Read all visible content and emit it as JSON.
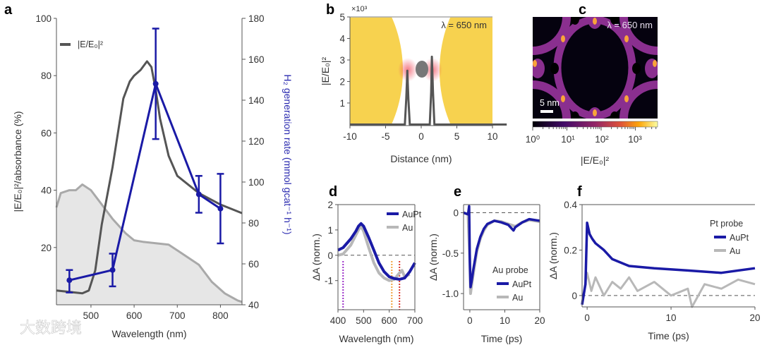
{
  "watermark": "大数跨境",
  "colors": {
    "blue": "#1a1aa6",
    "dark": "#555555",
    "gray": "#b8b8b8",
    "fill": "#e6e6e6",
    "gold": "#f7d046"
  },
  "chart_data": [
    {
      "panel": "a",
      "type": "line",
      "xlabel": "Wavelength (nm)",
      "ylabel": "|E/E₀|²/absorbance (%)",
      "y2label": "H₂ generation rate (mmol gcat⁻¹ h⁻¹)",
      "xlim": [
        420,
        850
      ],
      "ylim": [
        0,
        100
      ],
      "y2lim": [
        40,
        180
      ],
      "xticks": [
        "500",
        "600",
        "700",
        "800"
      ],
      "yticks": [
        "20",
        "40",
        "60",
        "80",
        "100"
      ],
      "y2ticks": [
        "40",
        "60",
        "80",
        "100",
        "120",
        "140",
        "160",
        "180"
      ],
      "legend": [
        "|E/E₀|²"
      ],
      "series": [
        {
          "name": "|E/E₀|²",
          "axis": "left",
          "x": [
            420,
            480,
            495,
            510,
            525,
            550,
            575,
            590,
            600,
            615,
            630,
            640,
            650,
            660,
            680,
            700,
            750,
            800,
            850
          ],
          "y": [
            5,
            4,
            5,
            12,
            28,
            48,
            72,
            78,
            80,
            82,
            85,
            83,
            75,
            65,
            52,
            45,
            39,
            35,
            32
          ]
        },
        {
          "name": "absorbance",
          "axis": "left",
          "x": [
            420,
            430,
            450,
            465,
            480,
            500,
            520,
            550,
            580,
            600,
            620,
            650,
            680,
            700,
            720,
            750,
            780,
            810,
            840,
            850
          ],
          "y": [
            34,
            39,
            40,
            40,
            42,
            40,
            36,
            30,
            25,
            22.5,
            22,
            21.5,
            21,
            19,
            17,
            14,
            8,
            4,
            1.5,
            1
          ]
        },
        {
          "name": "H₂ generation rate",
          "axis": "right",
          "x": [
            450,
            550,
            650,
            750,
            800
          ],
          "y": [
            52,
            57,
            148,
            94,
            87
          ],
          "err_low": [
            46,
            49,
            121,
            85,
            70
          ],
          "err_high": [
            57,
            65,
            175,
            103,
            104
          ]
        }
      ]
    },
    {
      "panel": "b",
      "type": "line",
      "xlabel": "Distance (nm)",
      "ylabel": "|E/E₀|²",
      "multiplier": "×10³",
      "annotation": "λ = 650 nm",
      "xlim": [
        -10,
        10
      ],
      "ylim": [
        -0.05,
        5
      ],
      "xticks": [
        "-10",
        "-5",
        "0",
        "5",
        "10"
      ],
      "yticks": [
        "1",
        "2",
        "3",
        "4",
        "5"
      ],
      "series": [
        {
          "name": "|E/E₀|²",
          "x": [
            -10,
            -2.3,
            -2.1,
            -1.95,
            -1.8,
            -1.6,
            1.2,
            1.4,
            1.5,
            1.65,
            1.85,
            12
          ],
          "y": [
            0,
            0,
            1.2,
            2.5,
            1.2,
            0,
            0,
            1.5,
            3.15,
            1.5,
            0,
            0
          ]
        }
      ]
    },
    {
      "panel": "c",
      "type": "heatmap",
      "annotation": "λ = 650 nm",
      "scalebar": "5 nm",
      "colorbar_label": "|E/E₀|²",
      "colorbar_ticks": [
        "10⁰",
        "10¹",
        "10²",
        "10³"
      ],
      "colorbar_range": [
        1,
        4000
      ]
    },
    {
      "panel": "d",
      "type": "line",
      "xlabel": "Wavelength (nm)",
      "ylabel": "ΔA (norm.)",
      "xlim": [
        400,
        700
      ],
      "ylim": [
        -2.15,
        2
      ],
      "xticks": [
        "400",
        "500",
        "600",
        "700"
      ],
      "yticks": [
        "-1",
        "0",
        "1",
        "2"
      ],
      "legend": [
        "AuPt",
        "Au"
      ],
      "vlines": [
        {
          "x": 420,
          "color": "#9b2fc9"
        },
        {
          "x": 610,
          "color": "#f2a23a"
        },
        {
          "x": 640,
          "color": "#d9342b"
        }
      ],
      "series": [
        {
          "name": "AuPt",
          "x": [
            400,
            420,
            450,
            470,
            480,
            490,
            500,
            520,
            540,
            560,
            580,
            600,
            620,
            640,
            660,
            680,
            700
          ],
          "y": [
            0.2,
            0.3,
            0.65,
            0.95,
            1.15,
            1.25,
            1.15,
            0.7,
            0.2,
            -0.3,
            -0.65,
            -0.85,
            -0.92,
            -0.95,
            -0.9,
            -0.65,
            -0.3
          ]
        },
        {
          "name": "Au",
          "x": [
            400,
            420,
            450,
            470,
            480,
            490,
            500,
            520,
            540,
            560,
            580,
            600,
            620,
            640,
            650,
            660,
            680
          ],
          "y": [
            0,
            0.05,
            0.4,
            0.8,
            1.0,
            1.15,
            0.95,
            0.3,
            -0.3,
            -0.7,
            -0.9,
            -1.0,
            -0.95,
            -0.7,
            -0.6,
            -0.85,
            -0.75
          ]
        }
      ]
    },
    {
      "panel": "e",
      "type": "line",
      "xlabel": "Time (ps)",
      "ylabel": "ΔA (norm.)",
      "xlim": [
        -1.8,
        20
      ],
      "ylim": [
        -1.2,
        0.1
      ],
      "xticks": [
        "0",
        "10",
        "20"
      ],
      "yticks": [
        "-1.0",
        "-0.5",
        "0"
      ],
      "legend_title": "Au probe",
      "legend": [
        "AuPt",
        "Au"
      ],
      "series": [
        {
          "name": "AuPt",
          "x": [
            -1.8,
            -0.5,
            -0.2,
            0,
            0.2,
            0.5,
            1,
            2,
            3,
            4,
            5,
            7,
            9,
            11,
            12.5,
            13,
            15,
            17,
            20
          ],
          "y": [
            0,
            -0.02,
            0.08,
            -0.6,
            -0.92,
            -0.85,
            -0.7,
            -0.45,
            -0.3,
            -0.2,
            -0.14,
            -0.1,
            -0.12,
            -0.15,
            -0.22,
            -0.18,
            -0.12,
            -0.08,
            -0.1
          ]
        },
        {
          "name": "Au",
          "x": [
            -1.8,
            -0.5,
            0,
            0.2,
            0.5,
            1,
            2,
            3,
            4,
            5,
            7,
            9,
            11,
            13,
            15,
            17,
            20
          ],
          "y": [
            0,
            -0.02,
            -0.6,
            -1.0,
            -0.9,
            -0.75,
            -0.48,
            -0.32,
            -0.22,
            -0.15,
            -0.1,
            -0.11,
            -0.14,
            -0.17,
            -0.12,
            -0.09,
            -0.11
          ]
        }
      ]
    },
    {
      "panel": "f",
      "type": "line",
      "xlabel": "Time (ps)",
      "ylabel": "ΔA (norm.)",
      "xlim": [
        -0.6,
        20
      ],
      "ylim": [
        -0.05,
        0.4
      ],
      "xticks": [
        "0",
        "10",
        "20"
      ],
      "yticks": [
        "0",
        "0.2",
        "0.4"
      ],
      "legend_title": "Pt probe",
      "legend": [
        "AuPt",
        "Au"
      ],
      "series": [
        {
          "name": "Au",
          "x": [
            -0.6,
            0,
            0.5,
            1,
            2,
            3,
            4,
            5,
            6,
            8,
            10,
            12,
            12.5,
            14,
            16,
            18,
            20
          ],
          "y": [
            -0.03,
            0.1,
            0.02,
            0.08,
            0.0,
            0.06,
            0.03,
            0.08,
            0.02,
            0.06,
            0.0,
            0.03,
            -0.05,
            0.05,
            0.03,
            0.07,
            0.05
          ]
        },
        {
          "name": "AuPt",
          "x": [
            -0.6,
            -0.2,
            0,
            0.3,
            0.6,
            1,
            2,
            3,
            5,
            8,
            12,
            16,
            20
          ],
          "y": [
            -0.04,
            0.05,
            0.32,
            0.27,
            0.25,
            0.23,
            0.2,
            0.16,
            0.13,
            0.12,
            0.11,
            0.1,
            0.12
          ]
        }
      ]
    }
  ]
}
